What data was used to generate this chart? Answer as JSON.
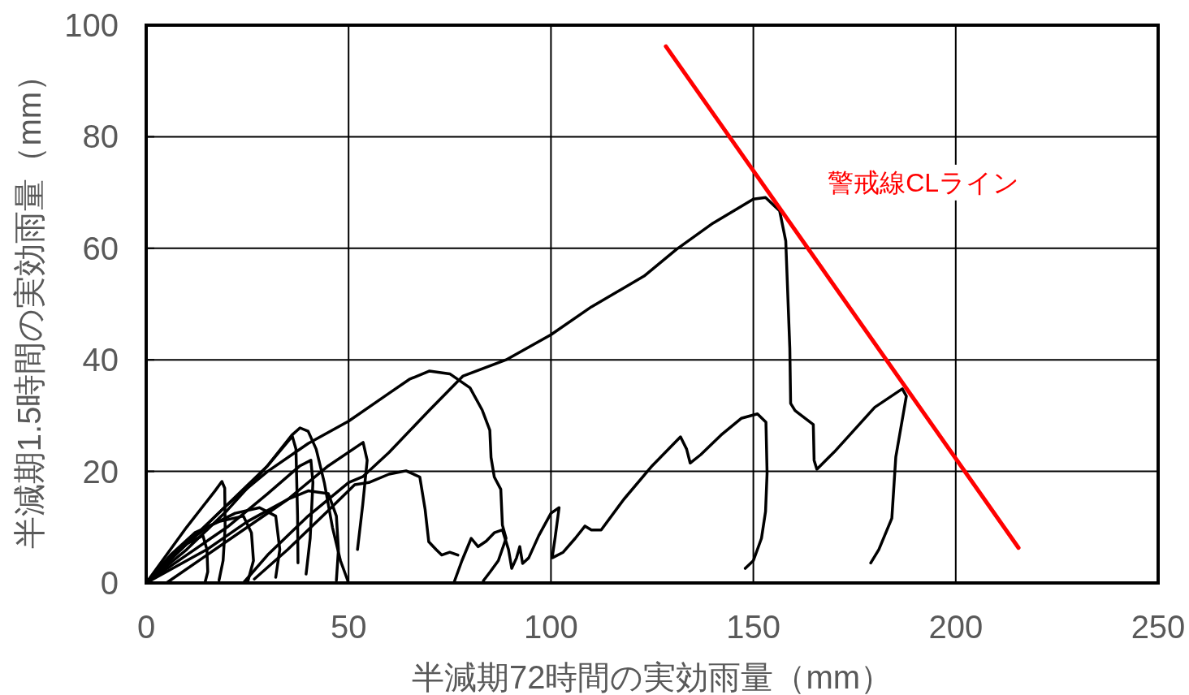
{
  "chart_data": {
    "type": "line",
    "xlabel": "半減期72時間の実効雨量（mm）",
    "ylabel": "半減期1.5時間の実効雨量（mm）",
    "xlim": [
      0,
      250
    ],
    "ylim": [
      0,
      100
    ],
    "xticks": [
      0,
      50,
      100,
      150,
      200,
      250
    ],
    "yticks": [
      0,
      20,
      40,
      60,
      80,
      100
    ],
    "grid": true,
    "series": [
      {
        "color": "#000000",
        "x": [
          24,
          30,
          40,
          50,
          53.6,
          60,
          70,
          78.3,
          88.9,
          100,
          110,
          123,
          131,
          140,
          150,
          153,
          156.5,
          158,
          159,
          159.2,
          160.3,
          164.8,
          165,
          165.7,
          170,
          175,
          180,
          186.8,
          187.8,
          185.2,
          184.2,
          181,
          179
        ],
        "values": [
          0,
          5,
          12,
          18,
          19.1,
          23.4,
          31,
          37.1,
          40,
          44.5,
          49.5,
          55,
          59.8,
          64.5,
          68.8,
          69.1,
          66.7,
          61.3,
          42,
          32.2,
          30.9,
          28.4,
          22,
          20.4,
          23.5,
          27.5,
          31.5,
          34.8,
          33.5,
          22.6,
          11.6,
          6,
          3.6
        ]
      },
      {
        "color": "#000000",
        "x": [
          0,
          10,
          20,
          30,
          40,
          50,
          60,
          65,
          70,
          75,
          80,
          83,
          84.9,
          85.2,
          86,
          87.6,
          88,
          88.9,
          87,
          85,
          83.3
        ],
        "values": [
          0,
          7,
          14,
          20,
          25,
          29,
          34,
          36.5,
          38,
          37.5,
          35,
          31,
          27.4,
          22.5,
          19,
          16.8,
          10.4,
          8,
          4,
          2,
          0.4
        ]
      },
      {
        "color": "#000000",
        "x": [
          76,
          78,
          80.3,
          82,
          84,
          86,
          88,
          89.5,
          90.3,
          91.5,
          92.3,
          93,
          94.5,
          97,
          100,
          102,
          101,
          100.3,
          103,
          106,
          108.4,
          110,
          112.4,
          118,
          125,
          132,
          133.5,
          134.4,
          137,
          142,
          147,
          151,
          153.1,
          153.4,
          153,
          152,
          150,
          148
        ],
        "values": [
          0,
          4,
          8,
          6.5,
          7.5,
          9,
          9.5,
          6,
          2.6,
          4.5,
          6.5,
          3.5,
          4.5,
          8.5,
          12.5,
          13.5,
          8,
          4.5,
          5.5,
          8,
          10.2,
          9.5,
          9.5,
          15,
          21,
          26.2,
          24,
          21.5,
          23,
          26.5,
          29.5,
          30.3,
          28.8,
          19.7,
          12.8,
          8,
          4,
          2.6
        ]
      },
      {
        "color": "#000000",
        "x": [
          0,
          10,
          20,
          30,
          36,
          38,
          40,
          42,
          44,
          46,
          48,
          50
        ],
        "values": [
          0,
          6,
          13,
          21,
          26.5,
          27.8,
          27.2,
          24,
          18,
          10,
          4,
          0
        ]
      },
      {
        "color": "#000000",
        "x": [
          0,
          10,
          20,
          30,
          36.1,
          37,
          37.4,
          37.5
        ],
        "values": [
          0,
          7,
          14,
          21,
          26.3,
          24,
          12,
          3.6
        ]
      },
      {
        "color": "#000000",
        "x": [
          5,
          15,
          25,
          35,
          45,
          53.6,
          54.6,
          53.5,
          52.2
        ],
        "values": [
          0,
          5,
          10,
          15,
          21,
          25.2,
          22,
          14,
          6
        ]
      },
      {
        "color": "#000000",
        "x": [
          0,
          10,
          20,
          30,
          38,
          40.7,
          41.2,
          40.5,
          39.5
        ],
        "values": [
          0,
          5,
          10,
          16,
          21,
          22,
          18,
          8,
          1.6
        ]
      },
      {
        "color": "#000000",
        "x": [
          26.7,
          35,
          45,
          51.5,
          55,
          60,
          64.2,
          67.6,
          68.9,
          69.8,
          71.6,
          73,
          75,
          77
        ],
        "values": [
          0.7,
          6,
          13,
          17.6,
          18,
          19.5,
          20.1,
          19,
          13.2,
          7.4,
          6,
          5,
          5.5,
          5
        ]
      },
      {
        "color": "#000000",
        "x": [
          0,
          10,
          17,
          18.7,
          19.4,
          19.5,
          19,
          18
        ],
        "values": [
          0,
          10,
          16.5,
          18.2,
          17,
          10,
          4,
          0.5
        ]
      },
      {
        "color": "#000000",
        "x": [
          0,
          8,
          15,
          22,
          28,
          32,
          33,
          32
        ],
        "values": [
          0,
          6,
          10,
          12.5,
          13.5,
          12,
          6,
          1
        ]
      },
      {
        "color": "#000000",
        "x": [
          0,
          6,
          12,
          18,
          24,
          26,
          26.5,
          25
        ],
        "values": [
          0,
          5,
          9,
          11,
          12,
          9,
          4,
          0
        ]
      },
      {
        "color": "#000000",
        "x": [
          0,
          5,
          10,
          14,
          15,
          15.2,
          14.5
        ],
        "values": [
          0,
          4,
          7,
          8.5,
          6,
          2,
          0
        ]
      },
      {
        "color": "#000000",
        "x": [
          0,
          15,
          25,
          35,
          40,
          45,
          47,
          47.5,
          47
        ],
        "values": [
          0,
          6,
          11,
          15,
          16.5,
          16,
          12,
          6,
          0.5
        ]
      },
      {
        "name": "警戒線CLライン",
        "color": "#ff0000",
        "x": [
          128.4,
          215.5
        ],
        "values": [
          96.2,
          6.3
        ]
      }
    ]
  }
}
